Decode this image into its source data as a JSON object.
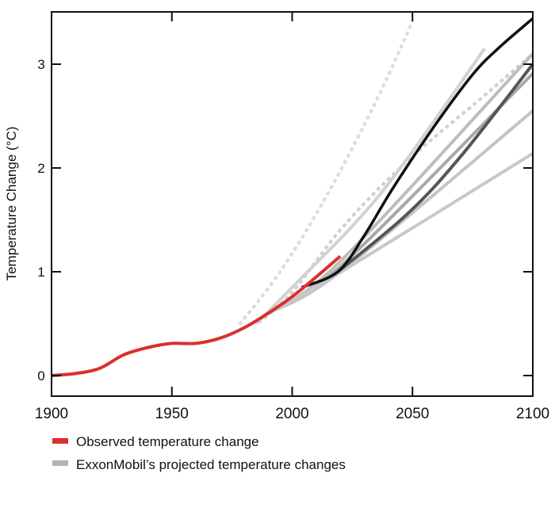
{
  "chart_data": {
    "type": "line",
    "title": "",
    "xlabel": "",
    "ylabel": "Temperature Change (°C)",
    "xlim": [
      1900,
      2100
    ],
    "ylim": [
      -0.2,
      3.5
    ],
    "x_ticks": [
      "1900",
      "1950",
      "2000",
      "2050",
      "2100"
    ],
    "y_ticks": [
      "0",
      "1",
      "2",
      "3"
    ],
    "grid": false,
    "legend": {
      "placement": "bottom-left",
      "items": [
        {
          "label": "Observed temperature change",
          "color": "#d9302c"
        },
        {
          "label": "ExxonMobil’s projected temperature changes",
          "color": "#b3b3b3"
        }
      ]
    },
    "observed": {
      "color": "#d9302c",
      "x": [
        1900,
        1910,
        1920,
        1930,
        1940,
        1950,
        1960,
        1970,
        1980,
        1990,
        2000,
        2010,
        2020
      ],
      "y": [
        0,
        0.02,
        0.07,
        0.2,
        0.27,
        0.31,
        0.31,
        0.36,
        0.46,
        0.6,
        0.76,
        0.95,
        1.15
      ]
    },
    "projections": [
      {
        "style": "dotted",
        "color": "#dcdcdc",
        "x": [
          1978,
          1995,
          2015,
          2035,
          2050
        ],
        "y": [
          0.49,
          1.0,
          1.76,
          2.65,
          3.41
        ]
      },
      {
        "style": "dotted",
        "color": "#d0d0d0",
        "x": [
          1986,
          2000,
          2021,
          2048,
          2080,
          2099
        ],
        "y": [
          0.51,
          0.8,
          1.43,
          2.07,
          2.7,
          3.08
        ]
      },
      {
        "style": "solid",
        "color": "#d2d2d2",
        "x": [
          1985,
          2000,
          2037,
          2080
        ],
        "y": [
          0.5,
          0.85,
          1.76,
          3.15
        ]
      },
      {
        "style": "solid",
        "color": "#bdbdbd",
        "x": [
          1990,
          2020,
          2100
        ],
        "y": [
          0.6,
          1.1,
          3.1
        ]
      },
      {
        "style": "solid",
        "color": "#a8a8a8",
        "x": [
          1990,
          2020,
          2100
        ],
        "y": [
          0.6,
          1.05,
          2.91
        ]
      },
      {
        "style": "solid",
        "color": "#c4c4c4",
        "x": [
          1990,
          2020,
          2100
        ],
        "y": [
          0.6,
          1.0,
          2.55
        ]
      },
      {
        "style": "solid",
        "color": "#c8c8c8",
        "x": [
          1990,
          2019,
          2100
        ],
        "y": [
          0.6,
          0.98,
          2.14
        ]
      },
      {
        "style": "solid",
        "color": "#555555",
        "x": [
          2019,
          2048,
          2070,
          2100
        ],
        "y": [
          1.0,
          1.56,
          2.11,
          3.0
        ]
      },
      {
        "style": "solid",
        "color": "#111111",
        "x": [
          2004,
          2019,
          2030,
          2042,
          2059,
          2075,
          2086,
          2100
        ],
        "y": [
          0.85,
          1.0,
          1.35,
          1.81,
          2.4,
          2.9,
          3.16,
          3.44
        ]
      }
    ]
  }
}
